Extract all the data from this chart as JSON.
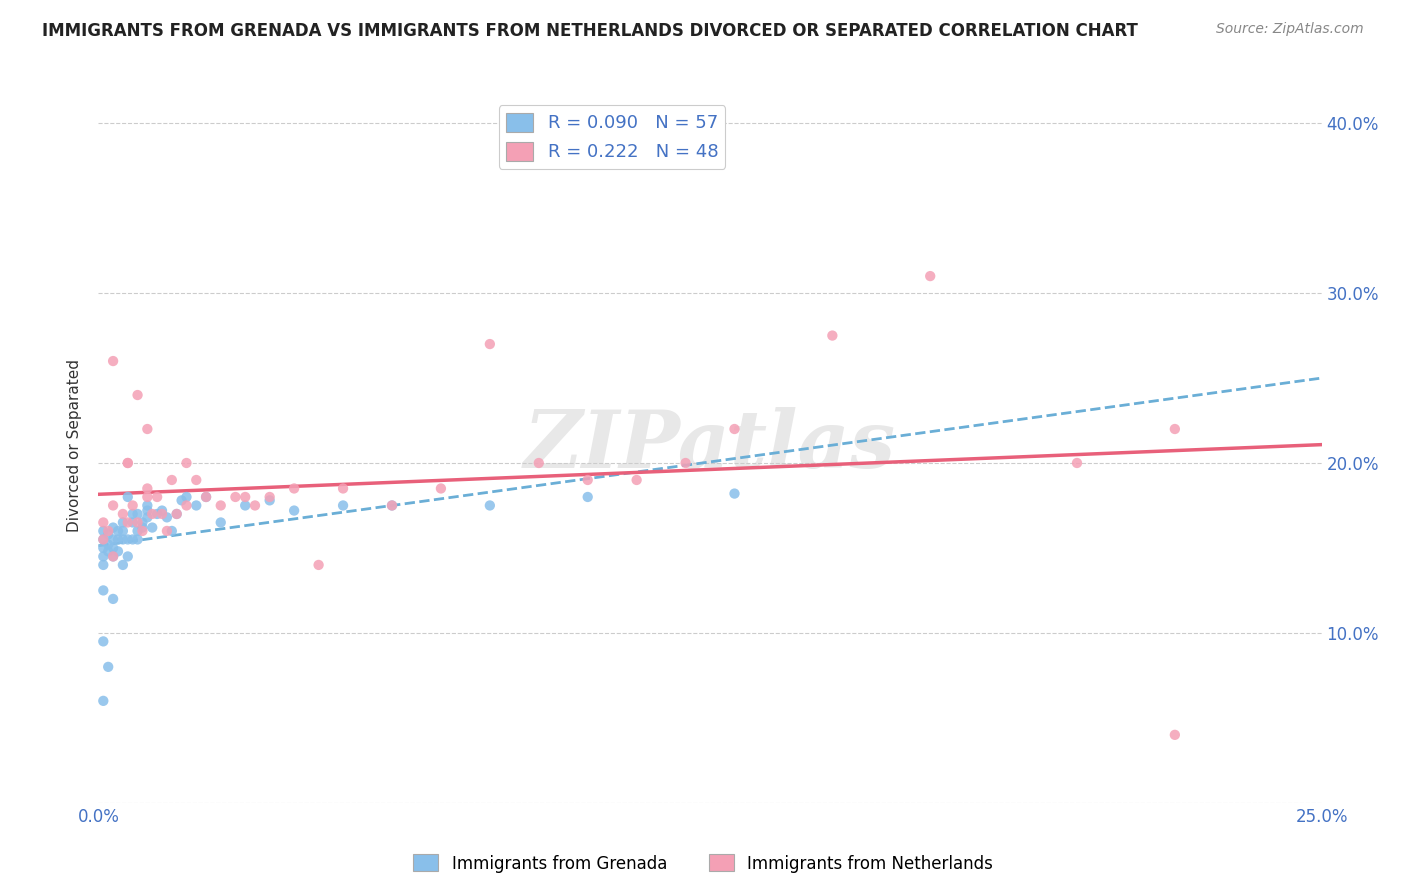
{
  "title": "IMMIGRANTS FROM GRENADA VS IMMIGRANTS FROM NETHERLANDS DIVORCED OR SEPARATED CORRELATION CHART",
  "source": "Source: ZipAtlas.com",
  "ylabel": "Divorced or Separated",
  "legend_label1": "Immigrants from Grenada",
  "legend_label2": "Immigrants from Netherlands",
  "R1": 0.09,
  "N1": 57,
  "R2": 0.222,
  "N2": 48,
  "color1": "#89bfea",
  "color2": "#f4a0b5",
  "trendline1_color": "#6aaed6",
  "trendline2_color": "#e8607a",
  "xlim": [
    0.0,
    0.25
  ],
  "ylim": [
    0.0,
    0.42
  ],
  "xtick_positions": [
    0.0,
    0.05,
    0.1,
    0.15,
    0.2,
    0.25
  ],
  "xtick_labels": [
    "0.0%",
    "",
    "",
    "",
    "",
    "25.0%"
  ],
  "ytick_positions": [
    0.0,
    0.1,
    0.2,
    0.3,
    0.4
  ],
  "ytick_labels": [
    "",
    "10.0%",
    "20.0%",
    "30.0%",
    "40.0%"
  ],
  "grenada_x": [
    0.001,
    0.001,
    0.001,
    0.001,
    0.001,
    0.002,
    0.002,
    0.002,
    0.003,
    0.003,
    0.003,
    0.003,
    0.004,
    0.004,
    0.004,
    0.005,
    0.005,
    0.005,
    0.005,
    0.006,
    0.006,
    0.006,
    0.007,
    0.007,
    0.007,
    0.008,
    0.008,
    0.008,
    0.009,
    0.009,
    0.01,
    0.01,
    0.01,
    0.011,
    0.012,
    0.013,
    0.014,
    0.015,
    0.016,
    0.017,
    0.018,
    0.02,
    0.022,
    0.025,
    0.03,
    0.035,
    0.04,
    0.05,
    0.06,
    0.08,
    0.1,
    0.13,
    0.001,
    0.001,
    0.002,
    0.003,
    0.001
  ],
  "grenada_y": [
    0.155,
    0.16,
    0.15,
    0.145,
    0.14,
    0.152,
    0.158,
    0.148,
    0.15,
    0.145,
    0.155,
    0.162,
    0.148,
    0.155,
    0.16,
    0.14,
    0.155,
    0.16,
    0.165,
    0.145,
    0.155,
    0.18,
    0.165,
    0.17,
    0.155,
    0.155,
    0.16,
    0.17,
    0.162,
    0.165,
    0.168,
    0.172,
    0.175,
    0.162,
    0.17,
    0.172,
    0.168,
    0.16,
    0.17,
    0.178,
    0.18,
    0.175,
    0.18,
    0.165,
    0.175,
    0.178,
    0.172,
    0.175,
    0.175,
    0.175,
    0.18,
    0.182,
    0.095,
    0.125,
    0.08,
    0.12,
    0.06
  ],
  "netherlands_x": [
    0.001,
    0.001,
    0.002,
    0.003,
    0.003,
    0.005,
    0.006,
    0.006,
    0.007,
    0.008,
    0.008,
    0.009,
    0.01,
    0.01,
    0.011,
    0.012,
    0.013,
    0.014,
    0.015,
    0.016,
    0.018,
    0.018,
    0.02,
    0.022,
    0.025,
    0.028,
    0.03,
    0.032,
    0.035,
    0.04,
    0.045,
    0.05,
    0.06,
    0.07,
    0.08,
    0.09,
    0.1,
    0.11,
    0.12,
    0.13,
    0.15,
    0.17,
    0.2,
    0.22,
    0.003,
    0.006,
    0.01,
    0.22
  ],
  "netherlands_y": [
    0.155,
    0.165,
    0.16,
    0.145,
    0.175,
    0.17,
    0.165,
    0.2,
    0.175,
    0.165,
    0.24,
    0.16,
    0.185,
    0.18,
    0.17,
    0.18,
    0.17,
    0.16,
    0.19,
    0.17,
    0.175,
    0.2,
    0.19,
    0.18,
    0.175,
    0.18,
    0.18,
    0.175,
    0.18,
    0.185,
    0.14,
    0.185,
    0.175,
    0.185,
    0.27,
    0.2,
    0.19,
    0.19,
    0.2,
    0.22,
    0.275,
    0.31,
    0.2,
    0.22,
    0.26,
    0.2,
    0.22,
    0.04
  ]
}
